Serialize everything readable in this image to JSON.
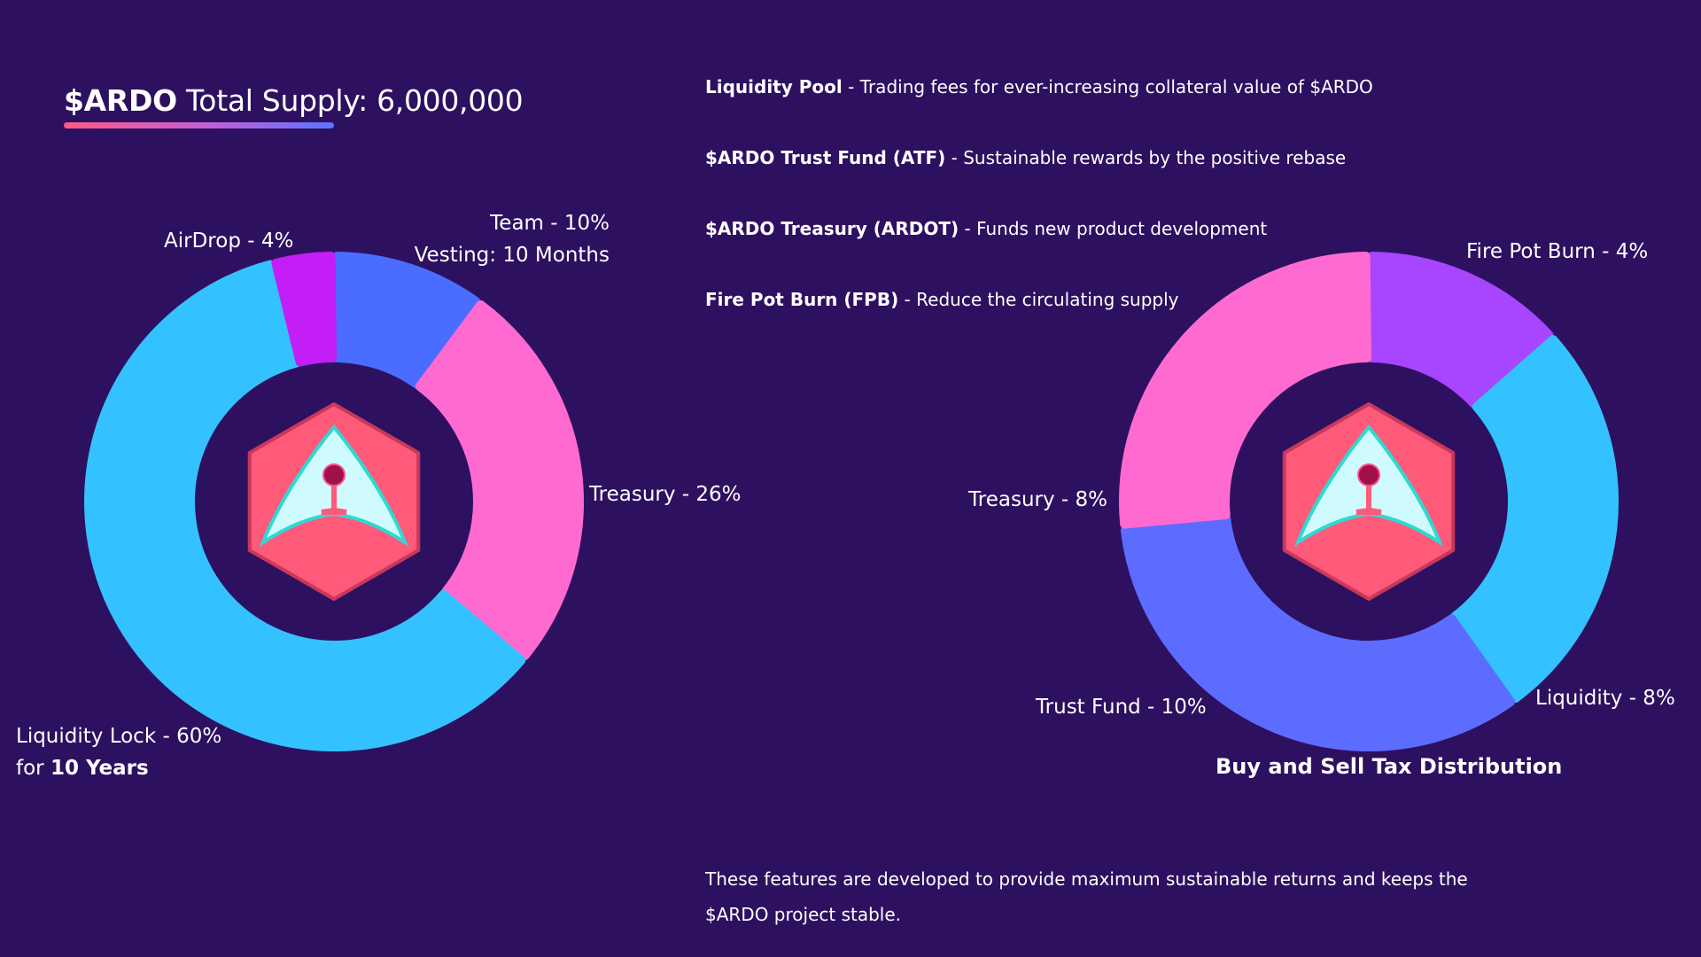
{
  "header": {
    "token": "$ARDO",
    "supply_text": " Total Supply: 6,000,000",
    "underline_gradient": [
      "#ff5a84",
      "#c060d8",
      "#5a74ff"
    ]
  },
  "features": [
    {
      "name": "Liquidity Pool",
      "desc": " - Trading fees for ever-increasing collateral value of $ARDO"
    },
    {
      "name": "$ARDO Trust Fund (ATF)",
      "desc": " -  Sustainable rewards by the positive rebase"
    },
    {
      "name": "$ARDO Treasury (ARDOT)",
      "desc": " -  Funds new product development"
    },
    {
      "name": "Fire Pot Burn (FPB)",
      "desc": " - Reduce the circulating supply"
    }
  ],
  "labels": {
    "team": "Team - 10%",
    "team_vesting": "Vesting: 10 Months",
    "airdrop": "AirDrop - 4%",
    "treasury_left": "Treasury - 26%",
    "liq_lock": "Liquidity Lock - 60%",
    "liq_lock_for": "for ",
    "liq_lock_years": "10 Years",
    "firepot": "Fire Pot Burn - 4%",
    "treasury_right": "Treasury - 8%",
    "trust": "Trust Fund - 10%",
    "liq_right": "Liquidity - 8%"
  },
  "tax_title": "Buy and Sell Tax Distribution",
  "footnote": "These features  are developed to provide maximum sustainable returns and keeps the $ARDO project stable.",
  "logo": {
    "hex_color": "#ff5a7a",
    "wing_color": "#cffbff",
    "wing_edge": "#30d8d0",
    "pin_color": "#a0104a"
  },
  "chart_data": [
    {
      "type": "pie",
      "title": "$ARDO Total Supply: 6,000,000",
      "slices": [
        {
          "label": "Team - 10%",
          "value": 10,
          "color": "#4a6cff"
        },
        {
          "label": "Treasury - 26%",
          "value": 26,
          "color": "#ff6ad0"
        },
        {
          "label": "Liquidity Lock - 60%",
          "value": 60,
          "color": "#33c2ff"
        },
        {
          "label": "AirDrop - 4%",
          "value": 4,
          "color": "#c21ef5"
        }
      ]
    },
    {
      "type": "pie",
      "title": "Buy and Sell Tax Distribution",
      "slices": [
        {
          "label": "Fire Pot Burn - 4%",
          "value": 4,
          "color": "#a745ff"
        },
        {
          "label": "Liquidity - 8%",
          "value": 8,
          "color": "#33c2ff"
        },
        {
          "label": "Trust Fund - 10%",
          "value": 10,
          "color": "#5c6cff"
        },
        {
          "label": "Treasury - 8%",
          "value": 8,
          "color": "#ff6ad0"
        }
      ]
    }
  ]
}
